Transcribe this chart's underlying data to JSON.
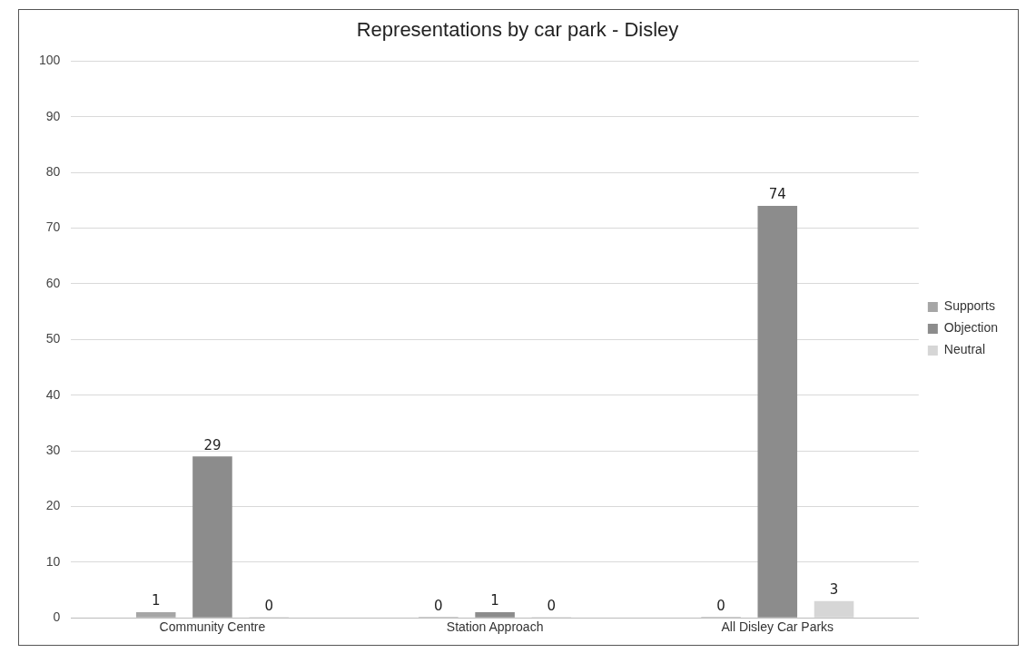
{
  "chart_data": {
    "type": "bar",
    "title": "Representations by car park - Disley",
    "categories": [
      "Community Centre",
      "Station Approach",
      "All Disley Car Parks"
    ],
    "series": [
      {
        "name": "Supports",
        "color": "#a6a6a6",
        "values": [
          1,
          0,
          0
        ]
      },
      {
        "name": "Objection",
        "color": "#8c8c8c",
        "values": [
          29,
          1,
          74
        ]
      },
      {
        "name": "Neutral",
        "color": "#d6d6d6",
        "values": [
          0,
          0,
          3
        ]
      }
    ],
    "ylim": [
      0,
      100
    ],
    "yticks": [
      0,
      10,
      20,
      30,
      40,
      50,
      60,
      70,
      80,
      90,
      100
    ],
    "grid": "y",
    "legend": "right",
    "data_labels": true
  }
}
